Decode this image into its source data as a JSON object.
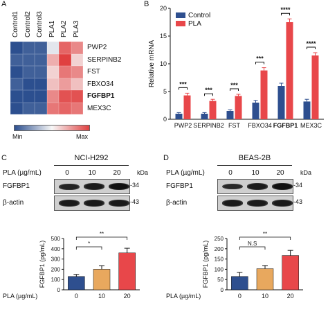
{
  "panels": {
    "A": "A",
    "B": "B",
    "C": "C",
    "D": "D"
  },
  "chart_data": [
    {
      "id": "A",
      "type": "heatmap",
      "columns": [
        "Control1",
        "Control2",
        "Control3",
        "PLA1",
        "PLA2",
        "PLA3"
      ],
      "rows": [
        "PWP2",
        "SERPINB2",
        "FST",
        "FBXO34",
        "FGFBP1",
        "MEX3C"
      ],
      "bold_rows": [
        "FGFBP1"
      ],
      "values": [
        [
          -1.0,
          -0.9,
          -0.9,
          -0.1,
          0.8,
          0.6
        ],
        [
          -0.9,
          -0.9,
          -0.9,
          0.4,
          1.0,
          0.2
        ],
        [
          -1.0,
          -0.9,
          -0.9,
          0.2,
          0.7,
          0.6
        ],
        [
          -0.9,
          -1.0,
          -1.0,
          0.3,
          0.5,
          0.3
        ],
        [
          -1.0,
          -1.0,
          -1.0,
          0.6,
          0.9,
          0.9
        ],
        [
          -1.0,
          -0.9,
          -0.9,
          0.7,
          0.8,
          0.7
        ]
      ],
      "legend": {
        "min": "Min",
        "max": "Max"
      },
      "colors": {
        "low": "#2c4f8f",
        "mid": "#f7f7f7",
        "high": "#e04040"
      }
    },
    {
      "id": "B",
      "type": "bar",
      "categories": [
        "PWP2",
        "SERPINB2",
        "FST",
        "FBXO34",
        "FGFBP1",
        "MEX3C"
      ],
      "bold_categories": [
        "FGFBP1"
      ],
      "series": [
        {
          "name": "Control",
          "color": "#2e4f8f",
          "values": [
            1.0,
            1.0,
            1.5,
            3.0,
            6.0,
            3.2
          ],
          "errors": [
            0.2,
            0.2,
            0.2,
            0.4,
            0.5,
            0.4
          ]
        },
        {
          "name": "PLA",
          "color": "#e8474a",
          "values": [
            4.3,
            3.3,
            4.2,
            8.8,
            17.5,
            11.5
          ],
          "errors": [
            0.4,
            0.3,
            0.3,
            0.5,
            0.6,
            0.5
          ]
        }
      ],
      "significance": [
        "***",
        "***",
        "***",
        "***",
        "****",
        "****"
      ],
      "ylabel": "Relative mRNA",
      "ylim": [
        0,
        20
      ],
      "yticks": [
        0,
        5,
        10,
        15,
        20
      ],
      "legend_position": "top-left"
    },
    {
      "id": "C",
      "type": "bar",
      "cell_line": "NCI-H292",
      "blot_header": "PLA (µg/mL)",
      "blot_doses": [
        "0",
        "10",
        "20"
      ],
      "blot_unit": "kDa",
      "blots": [
        {
          "name": "FGFBP1",
          "kda": "34",
          "intensity": [
            0.8,
            0.9,
            1.0
          ]
        },
        {
          "name": "β-actin",
          "kda": "43",
          "intensity": [
            0.9,
            0.9,
            0.9
          ]
        }
      ],
      "categories": [
        "0",
        "10",
        "20"
      ],
      "values": [
        130,
        200,
        360
      ],
      "errors": [
        20,
        35,
        45
      ],
      "colors": [
        "#2e4f8f",
        "#e8a85e",
        "#e8474a"
      ],
      "ylabel": "FGFBP1 (pg/mL)",
      "xlabel": "PLA (µg/mL)",
      "ylim": [
        0,
        500
      ],
      "yticks": [
        0,
        100,
        200,
        300,
        400,
        500
      ],
      "significance": [
        {
          "from": 0,
          "to": 1,
          "label": "*"
        },
        {
          "from": 0,
          "to": 2,
          "label": "**"
        }
      ]
    },
    {
      "id": "D",
      "type": "bar",
      "cell_line": "BEAS-2B",
      "blot_header": "PLA (µg/mL)",
      "blot_doses": [
        "0",
        "10",
        "20"
      ],
      "blot_unit": "kDa",
      "blots": [
        {
          "name": "FGFBP1",
          "kda": "34",
          "intensity": [
            0.75,
            0.9,
            1.0
          ]
        },
        {
          "name": "β-actin",
          "kda": "43",
          "intensity": [
            0.9,
            0.9,
            0.9
          ]
        }
      ],
      "categories": [
        "0",
        "10",
        "20"
      ],
      "values": [
        65,
        103,
        167
      ],
      "errors": [
        20,
        15,
        25
      ],
      "colors": [
        "#2e4f8f",
        "#e8a85e",
        "#e8474a"
      ],
      "ylabel": "FGFBP1 (pg/mL)",
      "xlabel": "PLA (µg/mL)",
      "ylim": [
        0,
        250
      ],
      "yticks": [
        0,
        50,
        100,
        150,
        200,
        250
      ],
      "significance": [
        {
          "from": 0,
          "to": 1,
          "label": "N.S"
        },
        {
          "from": 0,
          "to": 2,
          "label": "**"
        }
      ]
    }
  ]
}
